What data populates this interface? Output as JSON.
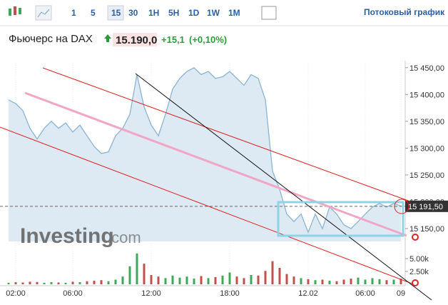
{
  "toolbar": {
    "intervals": [
      "1",
      "5",
      "15",
      "30",
      "1H",
      "5H",
      "1D",
      "1W",
      "1M"
    ],
    "active": "15",
    "stream_link": "Потоковый график"
  },
  "header": {
    "title": "Фьючерс на DAX",
    "price": "15.190,0",
    "change": "+15,1",
    "change_pct": "(+0,10%)"
  },
  "watermark": {
    "brand": "Investing",
    "suffix": ".com"
  },
  "chart_data": {
    "type": "area",
    "categories": [
      null,
      "02:00",
      null,
      null,
      null,
      null,
      null,
      null,
      null,
      "06:00",
      null,
      null,
      null,
      null,
      null,
      null,
      null,
      null,
      null,
      null,
      "12:00",
      null,
      null,
      null,
      null,
      null,
      null,
      null,
      null,
      null,
      null,
      "18:00",
      null,
      null,
      null,
      null,
      null,
      null,
      null,
      null,
      null,
      null,
      "12.02",
      null,
      null,
      null,
      null,
      null,
      null,
      null,
      "06:00",
      null,
      null,
      null,
      null,
      "09"
    ],
    "series": [
      {
        "name": "Фьючерс на DAX",
        "color": "#8ab4d4",
        "fill": "#dde9f3",
        "values": [
          15390,
          15383,
          15370,
          15337,
          15317,
          15337,
          15350,
          15337,
          15347,
          15330,
          15343,
          15323,
          15303,
          15290,
          15293,
          15323,
          15337,
          15363,
          15437,
          15377,
          15343,
          15323,
          15363,
          15410,
          15430,
          15443,
          15450,
          15437,
          15443,
          15430,
          15433,
          15443,
          15430,
          15417,
          15437,
          15430,
          15390,
          15257,
          15223,
          15177,
          15163,
          15177,
          15143,
          15177,
          15150,
          15190,
          15177,
          15157,
          15150,
          15163,
          15177,
          15190,
          15197,
          15190,
          15197,
          15192
        ]
      },
      {
        "name": "Volume",
        "axis": "y2",
        "up_color": "#3ea85a",
        "down_color": "#c0504d",
        "values": [
          300,
          400,
          350,
          500,
          450,
          300,
          400,
          350,
          300,
          500,
          400,
          600,
          700,
          800,
          600,
          900,
          1500,
          3500,
          6000,
          4000,
          1800,
          1500,
          1200,
          1700,
          1300,
          1500,
          1100,
          1600,
          1200,
          1400,
          1700,
          2300,
          1500,
          1200,
          1800,
          1700,
          2600,
          4500,
          3200,
          2000,
          1500,
          1200,
          1000,
          800,
          900,
          700,
          600,
          900,
          1100,
          1300,
          900,
          1200,
          1000,
          800,
          900,
          1100
        ]
      }
    ],
    "ylim": [
      15126,
      15463
    ],
    "yticks": [
      {
        "value": 15150,
        "label": "15 150,00"
      },
      {
        "value": 15200,
        "label": "15 200,00"
      },
      {
        "value": 15250,
        "label": "15 250,00"
      },
      {
        "value": 15300,
        "label": "15 300,00"
      },
      {
        "value": 15350,
        "label": "15 350,00"
      },
      {
        "value": 15400,
        "label": "15 400,00"
      },
      {
        "value": 15450,
        "label": "15 450,00"
      }
    ],
    "y2lim": [
      0,
      7500
    ],
    "y2ticks": [
      {
        "value": 2500,
        "label": "2.50k"
      },
      {
        "value": 5000,
        "label": "5.00k"
      }
    ],
    "last_price": {
      "value": 15191.5,
      "label": "15 191,50"
    }
  }
}
